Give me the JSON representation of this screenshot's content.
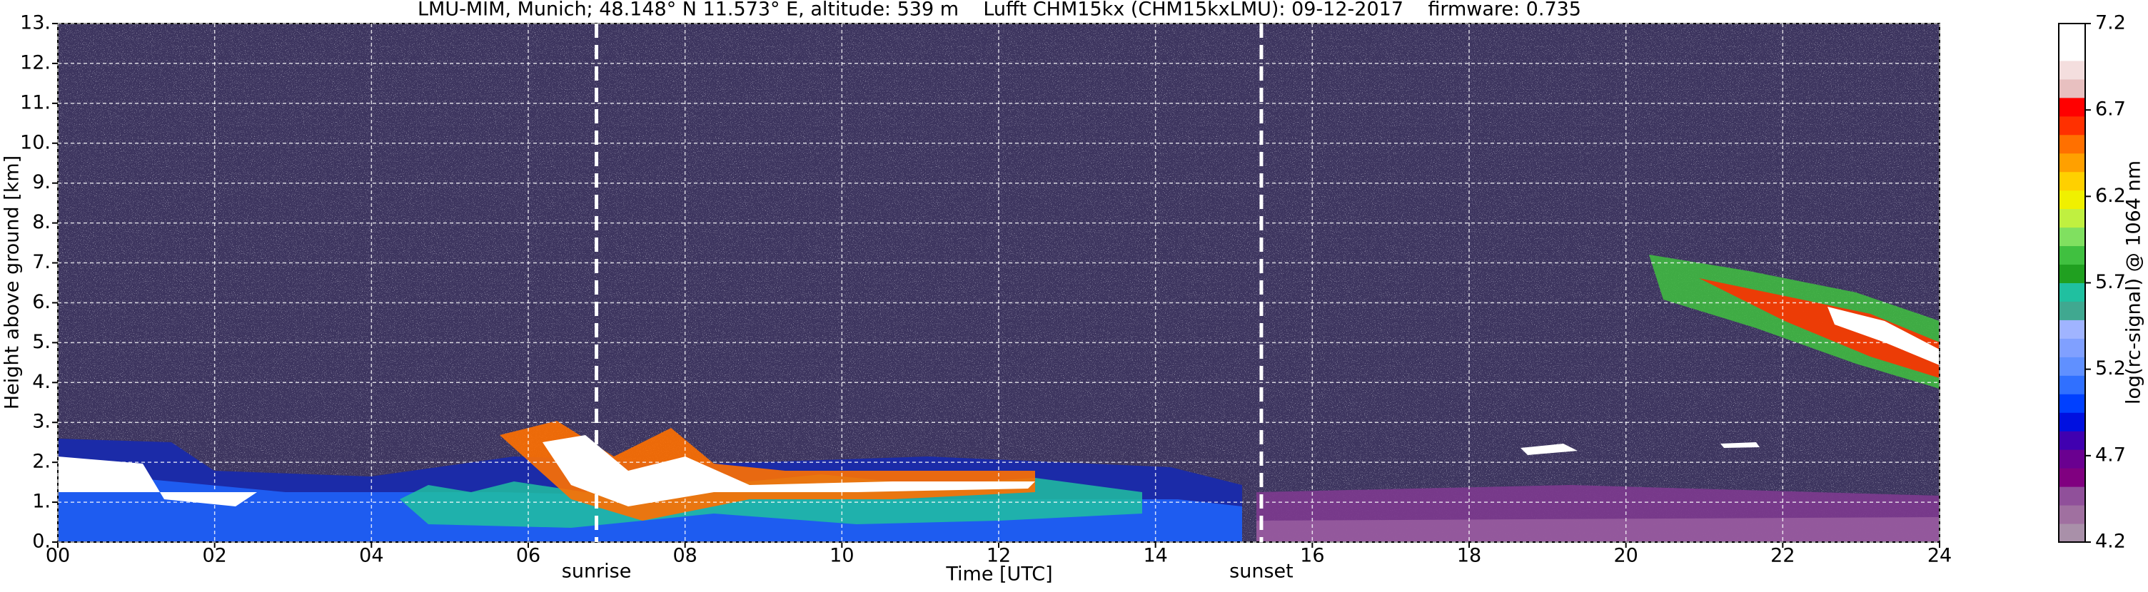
{
  "chart_data": {
    "type": "heatmap",
    "title": "LMU-MIM, Munich; 48.148° N 11.573° E, altitude: 539 m    Lufft CHM15kx (CHM15kxLMU): 09-12-2017    firmware: 0.735",
    "xlabel": "Time [UTC]",
    "ylabel": "Height above ground [km]",
    "xlim": [
      0,
      24
    ],
    "xticks": [
      {
        "value": 0,
        "label": "00"
      },
      {
        "value": 2,
        "label": "02"
      },
      {
        "value": 4,
        "label": "04"
      },
      {
        "value": 6,
        "label": "06"
      },
      {
        "value": 8,
        "label": "08"
      },
      10,
      12,
      14,
      16,
      18,
      20,
      22,
      24
    ],
    "ylim": [
      0,
      13
    ],
    "yticks": [
      {
        "value": 0,
        "label": "0."
      },
      {
        "value": 1,
        "label": "1."
      },
      {
        "value": 2,
        "label": "2."
      },
      {
        "value": 3,
        "label": "3."
      },
      {
        "value": 4,
        "label": "4."
      },
      {
        "value": 5,
        "label": "5."
      },
      {
        "value": 6,
        "label": "6."
      },
      {
        "value": 7,
        "label": "7."
      },
      {
        "value": 8,
        "label": "8."
      },
      {
        "value": 9,
        "label": "9."
      },
      {
        "value": 10,
        "label": "10."
      },
      {
        "value": 11,
        "label": "11."
      },
      {
        "value": 12,
        "label": "12."
      },
      {
        "value": 13,
        "label": "13."
      }
    ],
    "grid": true,
    "annotations": [
      {
        "label": "sunrise",
        "x": 6.87
      },
      {
        "label": "sunset",
        "x": 15.35
      }
    ],
    "colorbar": {
      "label": "log(rc-signal) @ 1064 nm",
      "clim": [
        4.2,
        7.2
      ],
      "ticks": [
        4.2,
        4.7,
        5.2,
        5.7,
        6.2,
        6.7,
        7.2
      ],
      "colors": [
        "#a990a9",
        "#a070a0",
        "#90509a",
        "#800080",
        "#6a0090",
        "#4000b0",
        "#0010e0",
        "#0040ff",
        "#3070ff",
        "#6090ff",
        "#80a0ff",
        "#a0b4ff",
        "#40a890",
        "#20c0a0",
        "#20a020",
        "#40c040",
        "#80e060",
        "#c0f040",
        "#f0f000",
        "#ffd000",
        "#ffa000",
        "#ff7000",
        "#ff3000",
        "#ff0000",
        "#e8c0c0",
        "#f4dede",
        "#ffffff",
        "#ffffff"
      ]
    }
  }
}
